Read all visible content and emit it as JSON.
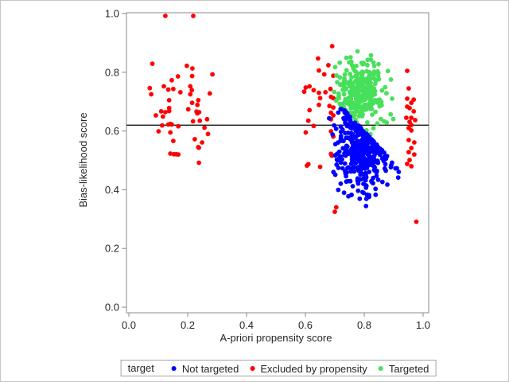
{
  "chart_data": {
    "type": "scatter",
    "title": "",
    "xlabel": "A-priori propensity score",
    "ylabel": "Bias-likelihood score",
    "xlim": [
      0.0,
      1.0
    ],
    "ylim": [
      0.0,
      1.0
    ],
    "x_ticks": [
      "0.0",
      "0.2",
      "0.4",
      "0.6",
      "0.8",
      "1.0"
    ],
    "y_ticks": [
      "0.0",
      "0.2",
      "0.4",
      "0.6",
      "0.8",
      "1.0"
    ],
    "grid": false,
    "reference_line_y": 0.62,
    "reference_line_color": "#000000",
    "legend_title": "target",
    "legend_position": "bottom",
    "marker": "circle",
    "series": [
      {
        "name": "Not targeted",
        "color": "#0000ff",
        "kind": "generated_cluster",
        "count": 430,
        "x_mean": 0.79,
        "x_sd": 0.042,
        "x_range": [
          0.68,
          0.93
        ],
        "y_mean": 0.55,
        "y_sd": 0.08,
        "y_range": [
          0.29,
          0.73
        ],
        "boundary": {
          "type": "max_y_line",
          "x0": 0.7,
          "y0": 0.705,
          "slope": -1.06,
          "hug_sd": 0.015
        },
        "seed": 7
      },
      {
        "name": "Excluded by propensity",
        "color": "#ff0000",
        "kind": "points",
        "points": [
          [
            0.124,
            0.992
          ],
          [
            0.219,
            0.992
          ],
          [
            0.08,
            0.829
          ],
          [
            0.197,
            0.822
          ],
          [
            0.216,
            0.813
          ],
          [
            0.284,
            0.793
          ],
          [
            0.215,
            0.787
          ],
          [
            0.167,
            0.786
          ],
          [
            0.146,
            0.773
          ],
          [
            0.119,
            0.752
          ],
          [
            0.209,
            0.752
          ],
          [
            0.071,
            0.746
          ],
          [
            0.151,
            0.743
          ],
          [
            0.134,
            0.741
          ],
          [
            0.214,
            0.739
          ],
          [
            0.175,
            0.732
          ],
          [
            0.275,
            0.728
          ],
          [
            0.076,
            0.725
          ],
          [
            0.209,
            0.725
          ],
          [
            0.137,
            0.705
          ],
          [
            0.236,
            0.705
          ],
          [
            0.215,
            0.696
          ],
          [
            0.233,
            0.689
          ],
          [
            0.137,
            0.678
          ],
          [
            0.202,
            0.674
          ],
          [
            0.137,
            0.668
          ],
          [
            0.11,
            0.667
          ],
          [
            0.23,
            0.666
          ],
          [
            0.239,
            0.664
          ],
          [
            0.124,
            0.664
          ],
          [
            0.233,
            0.66
          ],
          [
            0.092,
            0.653
          ],
          [
            0.116,
            0.649
          ],
          [
            0.266,
            0.64
          ],
          [
            0.241,
            0.635
          ],
          [
            0.218,
            0.633
          ],
          [
            0.141,
            0.624
          ],
          [
            0.134,
            0.622
          ],
          [
            0.146,
            0.622
          ],
          [
            0.113,
            0.619
          ],
          [
            0.168,
            0.616
          ],
          [
            0.257,
            0.611
          ],
          [
            0.101,
            0.599
          ],
          [
            0.141,
            0.595
          ],
          [
            0.269,
            0.59
          ],
          [
            0.224,
            0.572
          ],
          [
            0.151,
            0.566
          ],
          [
            0.249,
            0.561
          ],
          [
            0.236,
            0.545
          ],
          [
            0.238,
            0.543
          ],
          [
            0.141,
            0.523
          ],
          [
            0.153,
            0.521
          ],
          [
            0.161,
            0.521
          ],
          [
            0.168,
            0.52
          ],
          [
            0.238,
            0.492
          ],
          [
            0.691,
            0.889
          ],
          [
            0.643,
            0.847
          ],
          [
            0.678,
            0.824
          ],
          [
            0.646,
            0.806
          ],
          [
            0.664,
            0.793
          ],
          [
            0.695,
            0.788
          ],
          [
            0.614,
            0.752
          ],
          [
            0.601,
            0.748
          ],
          [
            0.685,
            0.743
          ],
          [
            0.628,
            0.739
          ],
          [
            0.596,
            0.734
          ],
          [
            0.668,
            0.732
          ],
          [
            0.646,
            0.73
          ],
          [
            0.687,
            0.716
          ],
          [
            0.65,
            0.712
          ],
          [
            0.695,
            0.712
          ],
          [
            0.646,
            0.689
          ],
          [
            0.682,
            0.685
          ],
          [
            0.695,
            0.68
          ],
          [
            0.614,
            0.671
          ],
          [
            0.687,
            0.662
          ],
          [
            0.695,
            0.653
          ],
          [
            0.687,
            0.64
          ],
          [
            0.61,
            0.635
          ],
          [
            0.628,
            0.617
          ],
          [
            0.687,
            0.599
          ],
          [
            0.601,
            0.595
          ],
          [
            0.695,
            0.581
          ],
          [
            0.687,
            0.522
          ],
          [
            0.69,
            0.516
          ],
          [
            0.61,
            0.487
          ],
          [
            0.605,
            0.482
          ],
          [
            0.65,
            0.478
          ],
          [
            0.705,
            0.34
          ],
          [
            0.7,
            0.325
          ],
          [
            0.946,
            0.805
          ],
          [
            0.951,
            0.745
          ],
          [
            0.946,
            0.71
          ],
          [
            0.968,
            0.707
          ],
          [
            0.96,
            0.696
          ],
          [
            0.946,
            0.683
          ],
          [
            0.954,
            0.678
          ],
          [
            0.968,
            0.667
          ],
          [
            0.943,
            0.645
          ],
          [
            0.96,
            0.645
          ],
          [
            0.973,
            0.637
          ],
          [
            0.954,
            0.631
          ],
          [
            0.96,
            0.62
          ],
          [
            0.951,
            0.61
          ],
          [
            0.96,
            0.602
          ],
          [
            0.951,
            0.569
          ],
          [
            0.97,
            0.561
          ],
          [
            0.96,
            0.542
          ],
          [
            0.951,
            0.528
          ],
          [
            0.97,
            0.52
          ],
          [
            0.954,
            0.501
          ],
          [
            0.946,
            0.488
          ],
          [
            0.96,
            0.48
          ],
          [
            0.977,
            0.291
          ]
        ]
      },
      {
        "name": "Targeted",
        "color": "#47e05a",
        "kind": "generated_cluster",
        "count": 300,
        "x_mean": 0.782,
        "x_sd": 0.042,
        "x_range": [
          0.69,
          0.92
        ],
        "y_mean": 0.73,
        "y_sd": 0.055,
        "y_range": [
          0.5,
          0.89
        ],
        "boundary": {
          "type": "min_y_line",
          "x0": 0.7,
          "y0": 0.705,
          "slope": -1.06,
          "hug_sd": 0.012
        },
        "seed": 13
      }
    ]
  }
}
